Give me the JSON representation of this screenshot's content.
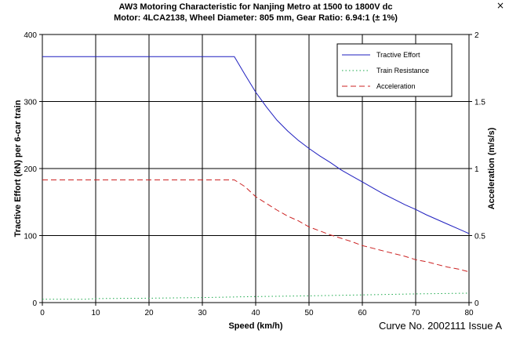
{
  "window": {
    "close_glyph": "×"
  },
  "chart_data": {
    "type": "line",
    "title": "AW3 Motoring Characteristic for Nanjing Metro at 1500 to 1800V dc",
    "subtitle": "Motor: 4LCA2138, Wheel Diameter: 805 mm, Gear Ratio: 6.94:1 (± 1%)",
    "xlabel": "Speed (km/h)",
    "ylabel": "Tractive Effort (kN) per 6-car train",
    "y2label": "Acceleration (m/s/s)",
    "xlim": [
      0,
      80
    ],
    "ylim": [
      0,
      400
    ],
    "y2lim": [
      0,
      2
    ],
    "x_ticks": [
      "0",
      "10",
      "20",
      "30",
      "40",
      "50",
      "60",
      "70",
      "80"
    ],
    "y_ticks": [
      "0",
      "100",
      "200",
      "300",
      "400"
    ],
    "y2_ticks": [
      "0",
      "0.5",
      "1",
      "1.5",
      "2"
    ],
    "grid": true,
    "legend_position": "top-right",
    "series": [
      {
        "name": "Tractive Effort",
        "axis": "left",
        "color": "#1f1fbf",
        "dash": "solid",
        "points": [
          [
            0,
            367
          ],
          [
            36,
            367
          ],
          [
            38,
            340
          ],
          [
            40,
            314
          ],
          [
            42,
            292
          ],
          [
            44,
            272
          ],
          [
            46,
            256
          ],
          [
            48,
            242
          ],
          [
            50,
            230
          ],
          [
            52,
            219
          ],
          [
            54,
            209
          ],
          [
            56,
            198
          ],
          [
            58,
            189
          ],
          [
            60,
            180
          ],
          [
            62,
            171
          ],
          [
            64,
            162
          ],
          [
            66,
            154
          ],
          [
            68,
            146
          ],
          [
            70,
            139
          ],
          [
            72,
            131
          ],
          [
            74,
            124
          ],
          [
            76,
            117
          ],
          [
            78,
            110
          ],
          [
            80,
            103
          ]
        ]
      },
      {
        "name": "Train Resistance",
        "axis": "left",
        "color": "#1aa84a",
        "dash": "dot",
        "points": [
          [
            0,
            5
          ],
          [
            8,
            5
          ],
          [
            10,
            6
          ],
          [
            20,
            6.5
          ],
          [
            30,
            7.5
          ],
          [
            40,
            9
          ],
          [
            50,
            10
          ],
          [
            60,
            11.5
          ],
          [
            70,
            13
          ],
          [
            80,
            14
          ]
        ]
      },
      {
        "name": "Acceleration",
        "axis": "right",
        "color": "#cc2222",
        "dash": "dash",
        "points": [
          [
            0,
            0.915
          ],
          [
            36,
            0.915
          ],
          [
            38,
            0.865
          ],
          [
            40,
            0.79
          ],
          [
            42,
            0.74
          ],
          [
            44,
            0.69
          ],
          [
            46,
            0.645
          ],
          [
            48,
            0.61
          ],
          [
            50,
            0.565
          ],
          [
            52,
            0.535
          ],
          [
            54,
            0.505
          ],
          [
            56,
            0.48
          ],
          [
            58,
            0.455
          ],
          [
            60,
            0.425
          ],
          [
            62,
            0.405
          ],
          [
            64,
            0.385
          ],
          [
            66,
            0.365
          ],
          [
            68,
            0.345
          ],
          [
            70,
            0.32
          ],
          [
            72,
            0.305
          ],
          [
            74,
            0.285
          ],
          [
            76,
            0.265
          ],
          [
            78,
            0.25
          ],
          [
            80,
            0.23
          ]
        ]
      }
    ],
    "annotation": "Curve No. 2002111 Issue A"
  }
}
